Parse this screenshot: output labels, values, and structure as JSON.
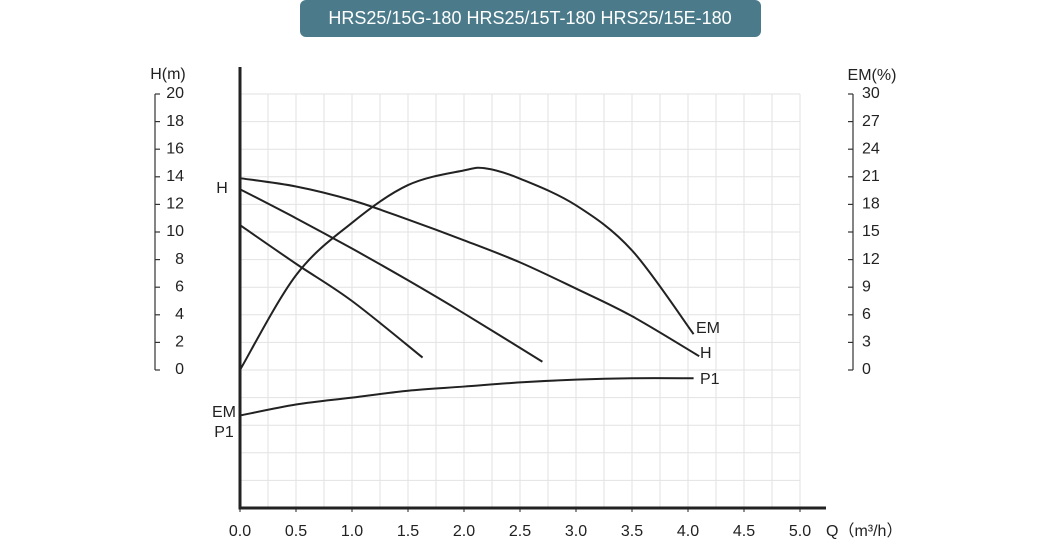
{
  "chart_data": {
    "type": "line",
    "title": "HRS25/15G-180 HRS25/15T-180 HRS25/15E-180",
    "ylabel": "H(m)",
    "y2label": "EM(%)",
    "xlabel": "Q（m³/h）",
    "xlim": [
      0,
      5
    ],
    "ylim": [
      -10,
      20
    ],
    "y2lim": [
      -15,
      30
    ],
    "xticks": [
      {
        "value": 0,
        "label": "0.0"
      },
      {
        "value": 0.5,
        "label": "0.5"
      },
      {
        "value": 1,
        "label": "1.0"
      },
      {
        "value": 1.5,
        "label": "1.5"
      },
      {
        "value": 2,
        "label": "2.0"
      },
      {
        "value": 2.5,
        "label": "2.5"
      },
      {
        "value": 3,
        "label": "3.0"
      },
      {
        "value": 3.5,
        "label": "3.5"
      },
      {
        "value": 4,
        "label": "4.0"
      },
      {
        "value": 4.5,
        "label": "4.5"
      },
      {
        "value": 5,
        "label": "5.0"
      }
    ],
    "yticks": [
      0,
      2,
      4,
      6,
      8,
      10,
      12,
      14,
      16,
      18,
      20
    ],
    "y2ticks": [
      0,
      3,
      6,
      9,
      12,
      15,
      18,
      21,
      24,
      27,
      30
    ],
    "xgrid": [
      0,
      0.25,
      0.5,
      0.75,
      1,
      1.25,
      1.5,
      1.75,
      2,
      2.25,
      2.5,
      2.75,
      3,
      3.25,
      3.5,
      3.75,
      4,
      4.25,
      4.5,
      4.75,
      5
    ],
    "ygrid": [
      -10,
      -8,
      -6,
      -4,
      -2,
      0,
      2,
      4,
      6,
      8,
      10,
      12,
      14,
      16,
      18,
      20
    ],
    "grid": true,
    "series": [
      {
        "color": "#222222",
        "x": [
          0,
          0.5,
          1,
          1.5,
          2,
          2.5,
          3,
          3.5,
          4.1
        ],
        "values": [
          13.9,
          13.3,
          12.3,
          10.9,
          9.4,
          7.8,
          5.9,
          3.9,
          1.0
        ]
      },
      {
        "color": "#222222",
        "x": [
          0,
          0.5,
          1,
          1.5,
          2,
          2.7
        ],
        "values": [
          13.1,
          11.0,
          8.8,
          6.5,
          4.1,
          0.6
        ]
      },
      {
        "color": "#222222",
        "x": [
          0,
          0.5,
          1,
          1.63
        ],
        "values": [
          10.5,
          7.7,
          5.0,
          0.9
        ]
      },
      {
        "color": "#222222",
        "axis": "y2",
        "x": [
          0,
          0.5,
          1,
          1.5,
          2,
          2.2,
          2.5,
          3,
          3.5,
          4.05
        ],
        "values": [
          0,
          10.3,
          16,
          20.1,
          21.7,
          21.9,
          20.8,
          17.9,
          13,
          3.9
        ]
      },
      {
        "color": "#222222",
        "x": [
          0,
          0.5,
          1,
          1.5,
          2,
          2.5,
          3,
          3.5,
          4.05
        ],
        "values": [
          -3.3,
          -2.5,
          -2.0,
          -1.5,
          -1.2,
          -0.9,
          -0.7,
          -0.6,
          -0.6
        ]
      }
    ],
    "annotations": [
      "H",
      "EM",
      "H",
      "P1",
      "EM",
      "P1"
    ]
  }
}
